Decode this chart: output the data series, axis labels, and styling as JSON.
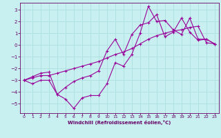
{
  "xlabel": "Windchill (Refroidissement éolien,°C)",
  "bg_color": "#c8f0f0",
  "grid_color": "#b0e0e0",
  "line_color": "#990099",
  "xlim": [
    -0.5,
    23.5
  ],
  "ylim": [
    -5.8,
    3.6
  ],
  "yticks": [
    -5,
    -4,
    -3,
    -2,
    -1,
    0,
    1,
    2,
    3
  ],
  "xticks": [
    0,
    1,
    2,
    3,
    4,
    5,
    6,
    7,
    8,
    9,
    10,
    11,
    12,
    13,
    14,
    15,
    16,
    17,
    18,
    19,
    20,
    21,
    22,
    23
  ],
  "line1_x": [
    0,
    1,
    2,
    3,
    4,
    5,
    6,
    7,
    8,
    9,
    10,
    11,
    12,
    13,
    14,
    15,
    16,
    17,
    18,
    19,
    20,
    21,
    22,
    23
  ],
  "line1_y": [
    -3.0,
    -3.3,
    -3.0,
    -3.0,
    -4.2,
    -4.6,
    -5.4,
    -4.5,
    -4.3,
    -4.3,
    -3.3,
    -1.5,
    -1.8,
    -0.8,
    1.0,
    3.3,
    2.0,
    2.1,
    1.3,
    0.9,
    2.3,
    0.5,
    0.5,
    0.1
  ],
  "line2_x": [
    0,
    1,
    2,
    3,
    4,
    5,
    6,
    7,
    8,
    9,
    10,
    11,
    12,
    13,
    14,
    15,
    16,
    17,
    18,
    19,
    20,
    21,
    22,
    23
  ],
  "line2_y": [
    -3.0,
    -2.8,
    -2.6,
    -2.6,
    -2.4,
    -2.2,
    -2.0,
    -1.8,
    -1.6,
    -1.4,
    -1.1,
    -0.8,
    -0.6,
    -0.3,
    0.1,
    0.5,
    0.8,
    1.0,
    1.2,
    1.3,
    1.5,
    1.6,
    0.2,
    0.1
  ],
  "line3_x": [
    0,
    1,
    2,
    3,
    4,
    5,
    6,
    7,
    8,
    9,
    10,
    11,
    12,
    13,
    14,
    15,
    16,
    17,
    18,
    19,
    20,
    21,
    22,
    23
  ],
  "line3_y": [
    -3.0,
    -2.7,
    -2.4,
    -2.3,
    -4.2,
    -3.6,
    -3.1,
    -2.8,
    -2.6,
    -2.2,
    -0.5,
    0.5,
    -0.8,
    0.9,
    1.7,
    1.9,
    2.6,
    0.7,
    1.1,
    2.3,
    1.1,
    0.4,
    0.5,
    0.1
  ]
}
